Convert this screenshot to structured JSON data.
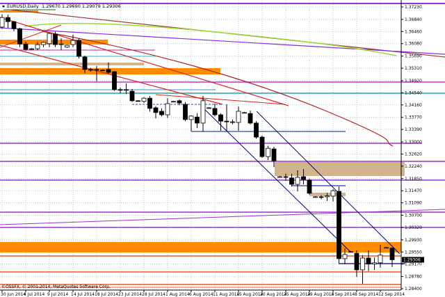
{
  "header": {
    "symbol_timeframe": "EURUSD,Daily",
    "ohlc_text": "1.29670 1.29690 1.29079 1.29306",
    "dropdown_icon": "triangle-down-icon"
  },
  "copyright": "©OSSFX, © 2001-2014, MetaQuotes Software Corp.",
  "colors": {
    "background": "#ffffff",
    "grid": "#b8c4d8",
    "bull_body": "#ffffff",
    "bear_body": "#000000",
    "support_zone": "#ff8c00",
    "range_zone": "#d2b48c",
    "level_line": "#9933cc",
    "channel_line": "#000080",
    "trend_line": "#e02020"
  },
  "chart_data": {
    "type": "candlestick",
    "title": "EURUSD,Daily",
    "grid": true,
    "ylim": [
      1.284,
      1.3723
    ],
    "y_ticks": [
      "1.37230",
      "1.36840",
      "1.36460",
      "1.36080",
      "1.35690",
      "1.35310",
      "1.34920",
      "1.34540",
      "1.34160",
      "1.33770",
      "1.33390",
      "1.33000",
      "1.32620",
      "1.32240",
      "1.31850",
      "1.31470",
      "1.31090",
      "1.30700",
      "1.30320",
      "1.29930",
      "1.29550",
      "1.29170",
      "1.28780",
      "1.28400"
    ],
    "current_price": "1.29306",
    "x_labels": [
      "30 Jun 2014",
      "4 Jul 2014",
      "9 Jul 2014",
      "14 Jul 2014",
      "18 Jul 2014",
      "23 Jul 2014",
      "28 Jul 2014",
      "1 Aug 2014",
      "6 Aug 2014",
      "11 Aug 2014",
      "15 Aug 2014",
      "20 Aug 2014",
      "25 Aug 2014",
      "29 Aug 2014",
      "3 Sep 2014",
      "8 Sep 2014",
      "12 Sep 2014"
    ],
    "candles": [
      {
        "date": "30 Jun 2014",
        "o": 1.366,
        "h": 1.37,
        "l": 1.3655,
        "c": 1.369
      },
      {
        "date": "1 Jul 2014",
        "o": 1.369,
        "h": 1.3699,
        "l": 1.3658,
        "c": 1.3677
      },
      {
        "date": "2 Jul 2014",
        "o": 1.3677,
        "h": 1.3679,
        "l": 1.3647,
        "c": 1.3655
      },
      {
        "date": "3 Jul 2014",
        "o": 1.3655,
        "h": 1.3658,
        "l": 1.3597,
        "c": 1.3607
      },
      {
        "date": "4 Jul 2014",
        "o": 1.3607,
        "h": 1.3614,
        "l": 1.3586,
        "c": 1.359
      },
      {
        "date": "6 Jul 2014",
        "o": 1.3592,
        "h": 1.3594,
        "l": 1.359,
        "c": 1.3592
      },
      {
        "date": "7 Jul 2014",
        "o": 1.3592,
        "h": 1.3612,
        "l": 1.3588,
        "c": 1.3605
      },
      {
        "date": "8 Jul 2014",
        "o": 1.3605,
        "h": 1.3614,
        "l": 1.3597,
        "c": 1.3612
      },
      {
        "date": "9 Jul 2014",
        "o": 1.3608,
        "h": 1.3642,
        "l": 1.3597,
        "c": 1.364
      },
      {
        "date": "10 Jul 2014",
        "o": 1.3638,
        "h": 1.3645,
        "l": 1.3597,
        "c": 1.3605
      },
      {
        "date": "11 Jul 2014",
        "o": 1.3607,
        "h": 1.3625,
        "l": 1.3588,
        "c": 1.3607
      },
      {
        "date": "13 Jul 2014",
        "o": 1.3597,
        "h": 1.3605,
        "l": 1.3595,
        "c": 1.3603
      },
      {
        "date": "14 Jul 2014",
        "o": 1.3605,
        "h": 1.3636,
        "l": 1.3597,
        "c": 1.3618
      },
      {
        "date": "15 Jul 2014",
        "o": 1.3618,
        "h": 1.3625,
        "l": 1.3562,
        "c": 1.3568
      },
      {
        "date": "16 Jul 2014",
        "o": 1.3566,
        "h": 1.357,
        "l": 1.3516,
        "c": 1.3527
      },
      {
        "date": "17 Jul 2014",
        "o": 1.3527,
        "h": 1.3532,
        "l": 1.352,
        "c": 1.3525
      },
      {
        "date": "18 Jul 2014",
        "o": 1.3527,
        "h": 1.3538,
        "l": 1.349,
        "c": 1.3525
      },
      {
        "date": "20 Jul 2014",
        "o": 1.3525,
        "h": 1.3527,
        "l": 1.3522,
        "c": 1.3524
      },
      {
        "date": "21 Jul 2014",
        "o": 1.3527,
        "h": 1.3549,
        "l": 1.3514,
        "c": 1.3518
      },
      {
        "date": "22 Jul 2014",
        "o": 1.352,
        "h": 1.3522,
        "l": 1.346,
        "c": 1.3464
      },
      {
        "date": "23 Jul 2014",
        "o": 1.3464,
        "h": 1.347,
        "l": 1.3453,
        "c": 1.3462
      },
      {
        "date": "24 Jul 2014",
        "o": 1.3464,
        "h": 1.3483,
        "l": 1.345,
        "c": 1.3463
      },
      {
        "date": "25 Jul 2014",
        "o": 1.3459,
        "h": 1.3466,
        "l": 1.3425,
        "c": 1.3429
      },
      {
        "date": "27 Jul 2014",
        "o": 1.3429,
        "h": 1.3431,
        "l": 1.3427,
        "c": 1.3428
      },
      {
        "date": "28 Jul 2014",
        "o": 1.3427,
        "h": 1.344,
        "l": 1.3422,
        "c": 1.3437
      },
      {
        "date": "29 Jul 2014",
        "o": 1.3437,
        "h": 1.3444,
        "l": 1.3395,
        "c": 1.3405
      },
      {
        "date": "30 Jul 2014",
        "o": 1.3407,
        "h": 1.3412,
        "l": 1.3374,
        "c": 1.3392
      },
      {
        "date": "31 Jul 2014",
        "o": 1.3396,
        "h": 1.3405,
        "l": 1.338,
        "c": 1.3385
      },
      {
        "date": "1 Aug 2014",
        "o": 1.3385,
        "h": 1.3437,
        "l": 1.3375,
        "c": 1.342
      },
      {
        "date": "3 Aug 2014",
        "o": 1.3427,
        "h": 1.3429,
        "l": 1.3425,
        "c": 1.3427
      },
      {
        "date": "4 Aug 2014",
        "o": 1.3429,
        "h": 1.3433,
        "l": 1.3415,
        "c": 1.3422
      },
      {
        "date": "5 Aug 2014",
        "o": 1.3418,
        "h": 1.3425,
        "l": 1.3365,
        "c": 1.337
      },
      {
        "date": "6 Aug 2014",
        "o": 1.337,
        "h": 1.3383,
        "l": 1.3333,
        "c": 1.3381
      },
      {
        "date": "7 Aug 2014",
        "o": 1.3378,
        "h": 1.339,
        "l": 1.3343,
        "c": 1.3359
      },
      {
        "date": "8 Aug 2014",
        "o": 1.3359,
        "h": 1.3444,
        "l": 1.3333,
        "c": 1.3429
      },
      {
        "date": "10 Aug 2014",
        "o": 1.3407,
        "h": 1.3409,
        "l": 1.3405,
        "c": 1.3407
      },
      {
        "date": "11 Aug 2014",
        "o": 1.3405,
        "h": 1.342,
        "l": 1.338,
        "c": 1.3385
      },
      {
        "date": "12 Aug 2014",
        "o": 1.3385,
        "h": 1.339,
        "l": 1.3335,
        "c": 1.3365
      },
      {
        "date": "13 Aug 2014",
        "o": 1.3365,
        "h": 1.3418,
        "l": 1.3335,
        "c": 1.3363
      },
      {
        "date": "14 Aug 2014",
        "o": 1.3363,
        "h": 1.337,
        "l": 1.3355,
        "c": 1.3362
      },
      {
        "date": "15 Aug 2014",
        "o": 1.3361,
        "h": 1.3411,
        "l": 1.3335,
        "c": 1.3396
      },
      {
        "date": "17 Aug 2014",
        "o": 1.3392,
        "h": 1.3394,
        "l": 1.339,
        "c": 1.3392
      },
      {
        "date": "18 Aug 2014",
        "o": 1.3389,
        "h": 1.3398,
        "l": 1.3355,
        "c": 1.3359
      },
      {
        "date": "19 Aug 2014",
        "o": 1.3359,
        "h": 1.3365,
        "l": 1.331,
        "c": 1.3315
      },
      {
        "date": "20 Aug 2014",
        "o": 1.3315,
        "h": 1.332,
        "l": 1.325,
        "c": 1.3254
      },
      {
        "date": "21 Aug 2014",
        "o": 1.3254,
        "h": 1.3287,
        "l": 1.3243,
        "c": 1.328
      },
      {
        "date": "22 Aug 2014",
        "o": 1.3278,
        "h": 1.3285,
        "l": 1.3221,
        "c": 1.3241
      },
      {
        "date": "24 Aug 2014",
        "o": 1.3191,
        "h": 1.3193,
        "l": 1.3189,
        "c": 1.3191
      },
      {
        "date": "25 Aug 2014",
        "o": 1.3191,
        "h": 1.32,
        "l": 1.3178,
        "c": 1.3189
      },
      {
        "date": "26 Aug 2014",
        "o": 1.3187,
        "h": 1.32,
        "l": 1.316,
        "c": 1.3167
      },
      {
        "date": "27 Aug 2014",
        "o": 1.3167,
        "h": 1.3211,
        "l": 1.3145,
        "c": 1.3189
      },
      {
        "date": "28 Aug 2014",
        "o": 1.3191,
        "h": 1.3215,
        "l": 1.3167,
        "c": 1.3182
      },
      {
        "date": "29 Aug 2014",
        "o": 1.318,
        "h": 1.3185,
        "l": 1.3135,
        "c": 1.3139
      },
      {
        "date": "31 Aug 2014",
        "o": 1.3128,
        "h": 1.313,
        "l": 1.3126,
        "c": 1.3128
      },
      {
        "date": "1 Sep 2014",
        "o": 1.3128,
        "h": 1.3133,
        "l": 1.312,
        "c": 1.3126
      },
      {
        "date": "2 Sep 2014",
        "o": 1.3128,
        "h": 1.314,
        "l": 1.3115,
        "c": 1.3131
      },
      {
        "date": "3 Sep 2014",
        "o": 1.313,
        "h": 1.3152,
        "l": 1.3113,
        "c": 1.3147
      },
      {
        "date": "4 Sep 2014",
        "o": 1.3145,
        "h": 1.316,
        "l": 1.292,
        "c": 1.2934
      },
      {
        "date": "5 Sep 2014",
        "o": 1.2934,
        "h": 1.2967,
        "l": 1.2917,
        "c": 1.2947
      },
      {
        "date": "7 Sep 2014",
        "o": 1.2956,
        "h": 1.2958,
        "l": 1.2954,
        "c": 1.2956
      },
      {
        "date": "8 Sep 2014",
        "o": 1.2951,
        "h": 1.296,
        "l": 1.2877,
        "c": 1.2899
      },
      {
        "date": "9 Sep 2014",
        "o": 1.2899,
        "h": 1.2945,
        "l": 1.2855,
        "c": 1.2936
      },
      {
        "date": "10 Sep 2014",
        "o": 1.2936,
        "h": 1.296,
        "l": 1.2895,
        "c": 1.2917
      },
      {
        "date": "11 Sep 2014",
        "o": 1.2917,
        "h": 1.2938,
        "l": 1.2899,
        "c": 1.2921
      },
      {
        "date": "12 Sep 2014",
        "o": 1.2921,
        "h": 1.2977,
        "l": 1.2906,
        "c": 1.2945
      },
      {
        "date": "14 Sep 2014",
        "o": 1.2969,
        "h": 1.2971,
        "l": 1.2967,
        "c": 1.2969
      },
      {
        "date": "15 Sep 2014",
        "o": 1.2967,
        "h": 1.2969,
        "l": 1.29079,
        "c": 1.29306
      }
    ]
  }
}
